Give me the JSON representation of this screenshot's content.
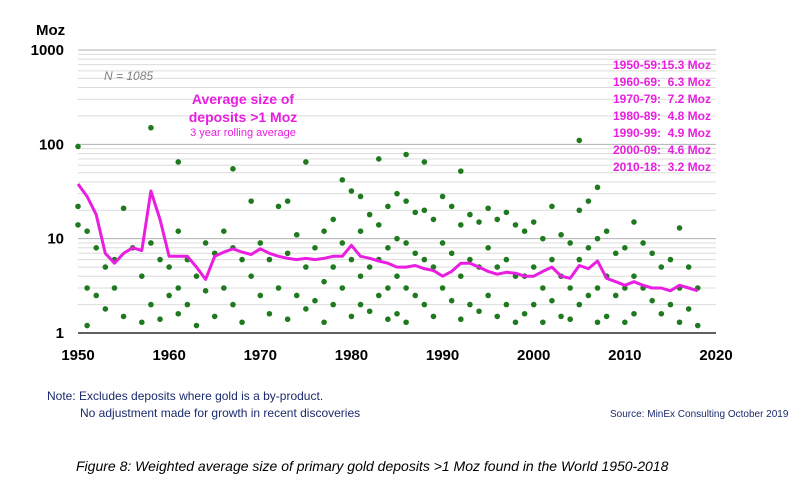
{
  "chart_data": {
    "type": "scatter",
    "title": "",
    "ylabel": "Moz",
    "yscale": "log",
    "ylim": [
      1,
      1000
    ],
    "xlim": [
      1950,
      2020
    ],
    "yticks": [
      1,
      10,
      100,
      1000
    ],
    "ytick_labels": [
      "1",
      "10",
      "100",
      "1000"
    ],
    "xticks": [
      1950,
      1960,
      1970,
      1980,
      1990,
      2000,
      2010,
      2020
    ],
    "xtick_labels": [
      "1950",
      "1960",
      "1970",
      "1980",
      "1990",
      "2000",
      "2010",
      "2020"
    ],
    "count_label": "N = 1085",
    "series": [
      {
        "name": "Deposits",
        "color": "#1f7a1f",
        "points": [
          [
            1950,
            95
          ],
          [
            1950,
            22
          ],
          [
            1950,
            14
          ],
          [
            1951,
            12
          ],
          [
            1951,
            3
          ],
          [
            1951,
            1.2
          ],
          [
            1952,
            8
          ],
          [
            1952,
            2.5
          ],
          [
            1953,
            5
          ],
          [
            1953,
            1.8
          ],
          [
            1954,
            6
          ],
          [
            1954,
            3
          ],
          [
            1955,
            21
          ],
          [
            1955,
            1.5
          ],
          [
            1956,
            8
          ],
          [
            1957,
            4
          ],
          [
            1957,
            1.3
          ],
          [
            1958,
            150
          ],
          [
            1958,
            9
          ],
          [
            1958,
            2
          ],
          [
            1959,
            6
          ],
          [
            1959,
            1.4
          ],
          [
            1960,
            5
          ],
          [
            1960,
            2.5
          ],
          [
            1961,
            65
          ],
          [
            1961,
            12
          ],
          [
            1961,
            3
          ],
          [
            1961,
            1.6
          ],
          [
            1962,
            6
          ],
          [
            1962,
            2
          ],
          [
            1963,
            4
          ],
          [
            1963,
            1.2
          ],
          [
            1964,
            9
          ],
          [
            1964,
            2.8
          ],
          [
            1965,
            7
          ],
          [
            1965,
            1.5
          ],
          [
            1966,
            12
          ],
          [
            1966,
            3
          ],
          [
            1967,
            55
          ],
          [
            1967,
            8
          ],
          [
            1967,
            2
          ],
          [
            1968,
            6
          ],
          [
            1968,
            1.3
          ],
          [
            1969,
            25
          ],
          [
            1969,
            4
          ],
          [
            1970,
            9
          ],
          [
            1970,
            2.5
          ],
          [
            1971,
            6
          ],
          [
            1971,
            1.6
          ],
          [
            1972,
            22
          ],
          [
            1972,
            3
          ],
          [
            1973,
            25
          ],
          [
            1973,
            7
          ],
          [
            1973,
            1.4
          ],
          [
            1974,
            11
          ],
          [
            1974,
            2.5
          ],
          [
            1975,
            65
          ],
          [
            1975,
            5
          ],
          [
            1975,
            1.8
          ],
          [
            1976,
            8
          ],
          [
            1976,
            2.2
          ],
          [
            1977,
            12
          ],
          [
            1977,
            3.5
          ],
          [
            1977,
            1.3
          ],
          [
            1978,
            16
          ],
          [
            1978,
            5
          ],
          [
            1978,
            2
          ],
          [
            1979,
            42
          ],
          [
            1979,
            9
          ],
          [
            1979,
            3
          ],
          [
            1980,
            32
          ],
          [
            1980,
            6
          ],
          [
            1980,
            1.5
          ],
          [
            1981,
            28
          ],
          [
            1981,
            12
          ],
          [
            1981,
            4
          ],
          [
            1981,
            2
          ],
          [
            1982,
            18
          ],
          [
            1982,
            5
          ],
          [
            1982,
            1.7
          ],
          [
            1983,
            70
          ],
          [
            1983,
            14
          ],
          [
            1983,
            6
          ],
          [
            1983,
            2.5
          ],
          [
            1984,
            22
          ],
          [
            1984,
            8
          ],
          [
            1984,
            3
          ],
          [
            1984,
            1.4
          ],
          [
            1985,
            30
          ],
          [
            1985,
            10
          ],
          [
            1985,
            4
          ],
          [
            1985,
            1.6
          ],
          [
            1986,
            78
          ],
          [
            1986,
            25
          ],
          [
            1986,
            9
          ],
          [
            1986,
            3
          ],
          [
            1986,
            1.3
          ],
          [
            1987,
            19
          ],
          [
            1987,
            7
          ],
          [
            1987,
            2.5
          ],
          [
            1988,
            65
          ],
          [
            1988,
            20
          ],
          [
            1988,
            6
          ],
          [
            1988,
            2
          ],
          [
            1989,
            16
          ],
          [
            1989,
            5
          ],
          [
            1989,
            1.5
          ],
          [
            1990,
            28
          ],
          [
            1990,
            9
          ],
          [
            1990,
            3
          ],
          [
            1991,
            22
          ],
          [
            1991,
            7
          ],
          [
            1991,
            2.2
          ],
          [
            1992,
            52
          ],
          [
            1992,
            14
          ],
          [
            1992,
            4
          ],
          [
            1992,
            1.4
          ],
          [
            1993,
            18
          ],
          [
            1993,
            6
          ],
          [
            1993,
            2
          ],
          [
            1994,
            15
          ],
          [
            1994,
            5
          ],
          [
            1994,
            1.7
          ],
          [
            1995,
            21
          ],
          [
            1995,
            8
          ],
          [
            1995,
            2.5
          ],
          [
            1996,
            16
          ],
          [
            1996,
            5
          ],
          [
            1996,
            1.5
          ],
          [
            1997,
            19
          ],
          [
            1997,
            6
          ],
          [
            1997,
            2
          ],
          [
            1998,
            14
          ],
          [
            1998,
            4
          ],
          [
            1998,
            1.3
          ],
          [
            1999,
            12
          ],
          [
            1999,
            4
          ],
          [
            1999,
            1.6
          ],
          [
            2000,
            15
          ],
          [
            2000,
            5
          ],
          [
            2000,
            2
          ],
          [
            2001,
            10
          ],
          [
            2001,
            3
          ],
          [
            2001,
            1.3
          ],
          [
            2002,
            22
          ],
          [
            2002,
            6
          ],
          [
            2002,
            2.2
          ],
          [
            2003,
            11
          ],
          [
            2003,
            4
          ],
          [
            2003,
            1.5
          ],
          [
            2004,
            9
          ],
          [
            2004,
            3
          ],
          [
            2004,
            1.4
          ],
          [
            2005,
            110
          ],
          [
            2005,
            20
          ],
          [
            2005,
            6
          ],
          [
            2005,
            2
          ],
          [
            2006,
            25
          ],
          [
            2006,
            8
          ],
          [
            2006,
            2.5
          ],
          [
            2007,
            35
          ],
          [
            2007,
            10
          ],
          [
            2007,
            3
          ],
          [
            2007,
            1.3
          ],
          [
            2008,
            12
          ],
          [
            2008,
            4
          ],
          [
            2008,
            1.5
          ],
          [
            2009,
            7
          ],
          [
            2009,
            2.5
          ],
          [
            2010,
            8
          ],
          [
            2010,
            3
          ],
          [
            2010,
            1.3
          ],
          [
            2011,
            15
          ],
          [
            2011,
            4
          ],
          [
            2011,
            1.6
          ],
          [
            2012,
            9
          ],
          [
            2012,
            3
          ],
          [
            2013,
            7
          ],
          [
            2013,
            2.2
          ],
          [
            2014,
            5
          ],
          [
            2014,
            1.6
          ],
          [
            2015,
            6
          ],
          [
            2015,
            2
          ],
          [
            2016,
            13
          ],
          [
            2016,
            3
          ],
          [
            2016,
            1.3
          ],
          [
            2017,
            5
          ],
          [
            2017,
            1.8
          ],
          [
            2018,
            3
          ],
          [
            2018,
            1.2
          ]
        ]
      },
      {
        "name": "Average size of deposits >1 Moz (3 year rolling average)",
        "type": "line",
        "color": "#e91ee0",
        "x": [
          1950,
          1951,
          1952,
          1953,
          1954,
          1955,
          1956,
          1957,
          1958,
          1959,
          1960,
          1961,
          1962,
          1963,
          1964,
          1965,
          1966,
          1967,
          1968,
          1969,
          1970,
          1971,
          1972,
          1973,
          1974,
          1975,
          1976,
          1977,
          1978,
          1979,
          1980,
          1981,
          1982,
          1983,
          1984,
          1985,
          1986,
          1987,
          1988,
          1989,
          1990,
          1991,
          1992,
          1993,
          1994,
          1995,
          1996,
          1997,
          1998,
          1999,
          2000,
          2001,
          2002,
          2003,
          2004,
          2005,
          2006,
          2007,
          2008,
          2009,
          2010,
          2011,
          2012,
          2013,
          2014,
          2015,
          2016,
          2017,
          2018
        ],
        "values": [
          38,
          28,
          18,
          7,
          5.5,
          7,
          8,
          7.5,
          32,
          16,
          6.5,
          6.5,
          6.5,
          5,
          3.7,
          6.5,
          7.2,
          7.8,
          7.2,
          6.8,
          7.8,
          7,
          6.5,
          6.2,
          6,
          6.2,
          6,
          6.2,
          6.5,
          6.5,
          8.5,
          6.5,
          6.2,
          5.8,
          5.5,
          5,
          5,
          5.2,
          4.8,
          4.6,
          4,
          4.5,
          5.5,
          5.5,
          5,
          4.5,
          4.2,
          4.4,
          4.3,
          4,
          4,
          4.5,
          5,
          4,
          3.8,
          5.2,
          4.8,
          5.8,
          3.8,
          3.5,
          3.2,
          3.5,
          3.2,
          3,
          3,
          2.8,
          3.2,
          3,
          2.8
        ]
      }
    ],
    "annotation": {
      "title_line1": "Average size of",
      "title_line2": "deposits >1 Moz",
      "subtitle": "3 year rolling average"
    },
    "decade_averages": [
      {
        "label": "1950-59:",
        "value": "15.3 Moz"
      },
      {
        "label": "1960-69:",
        "value": "6.3 Moz"
      },
      {
        "label": "1970-79:",
        "value": "7.2 Moz"
      },
      {
        "label": "1980-89:",
        "value": "4.8 Moz"
      },
      {
        "label": "1990-99:",
        "value": "4.9 Moz"
      },
      {
        "label": "2000-09:",
        "value": "4.6 Moz"
      },
      {
        "label": "2010-18:",
        "value": "3.2 Moz"
      }
    ]
  },
  "notes": {
    "line1": "Note: Excludes deposits where gold is a by-product.",
    "line2": "No adjustment made for growth in recent discoveries"
  },
  "source": "Source: MinEx Consulting October 2019",
  "caption": "Figure 8: Weighted average size of primary gold deposits >1 Moz found in the World 1950-2018"
}
